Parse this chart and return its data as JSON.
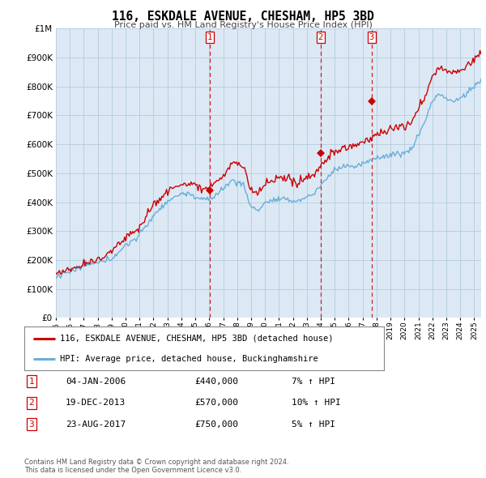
{
  "title": "116, ESKDALE AVENUE, CHESHAM, HP5 3BD",
  "subtitle": "Price paid vs. HM Land Registry's House Price Index (HPI)",
  "legend_line1": "116, ESKDALE AVENUE, CHESHAM, HP5 3BD (detached house)",
  "legend_line2": "HPI: Average price, detached house, Buckinghamshire",
  "footer1": "Contains HM Land Registry data © Crown copyright and database right 2024.",
  "footer2": "This data is licensed under the Open Government Licence v3.0.",
  "table": [
    {
      "num": "1",
      "date": "04-JAN-2006",
      "price": "£440,000",
      "hpi": "7% ↑ HPI"
    },
    {
      "num": "2",
      "date": "19-DEC-2013",
      "price": "£570,000",
      "hpi": "10% ↑ HPI"
    },
    {
      "num": "3",
      "date": "23-AUG-2017",
      "price": "£750,000",
      "hpi": "5% ↑ HPI"
    }
  ],
  "sale_years": [
    2006.02,
    2013.97,
    2017.64
  ],
  "sale_prices": [
    440000,
    570000,
    750000
  ],
  "hpi_color": "#6aaed6",
  "price_color": "#cc0000",
  "vline_color": "#cc0000",
  "chart_bg": "#dce9f5",
  "background_color": "#ffffff",
  "grid_color": "#b8cfe0",
  "ylim": [
    0,
    1000000
  ],
  "xlim_start": 1995.0,
  "xlim_end": 2025.5
}
